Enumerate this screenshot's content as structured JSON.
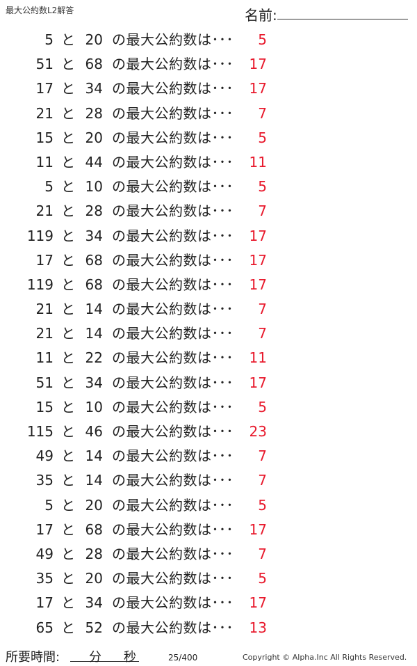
{
  "header": {
    "title": "最大公約数L2解答",
    "name_label": "名前:"
  },
  "question_suffix": "の最大公約数は･･･",
  "connector": "と",
  "answer_color": "#e8192c",
  "rows": [
    {
      "a": "5",
      "b": "20",
      "ans": "5"
    },
    {
      "a": "51",
      "b": "68",
      "ans": "17"
    },
    {
      "a": "17",
      "b": "34",
      "ans": "17"
    },
    {
      "a": "21",
      "b": "28",
      "ans": "7"
    },
    {
      "a": "15",
      "b": "20",
      "ans": "5"
    },
    {
      "a": "11",
      "b": "44",
      "ans": "11"
    },
    {
      "a": "5",
      "b": "10",
      "ans": "5"
    },
    {
      "a": "21",
      "b": "28",
      "ans": "7"
    },
    {
      "a": "119",
      "b": "34",
      "ans": "17"
    },
    {
      "a": "17",
      "b": "68",
      "ans": "17"
    },
    {
      "a": "119",
      "b": "68",
      "ans": "17"
    },
    {
      "a": "21",
      "b": "14",
      "ans": "7"
    },
    {
      "a": "21",
      "b": "14",
      "ans": "7"
    },
    {
      "a": "11",
      "b": "22",
      "ans": "11"
    },
    {
      "a": "51",
      "b": "34",
      "ans": "17"
    },
    {
      "a": "15",
      "b": "10",
      "ans": "5"
    },
    {
      "a": "115",
      "b": "46",
      "ans": "23"
    },
    {
      "a": "49",
      "b": "14",
      "ans": "7"
    },
    {
      "a": "35",
      "b": "14",
      "ans": "7"
    },
    {
      "a": "5",
      "b": "20",
      "ans": "5"
    },
    {
      "a": "17",
      "b": "68",
      "ans": "17"
    },
    {
      "a": "49",
      "b": "28",
      "ans": "7"
    },
    {
      "a": "35",
      "b": "20",
      "ans": "5"
    },
    {
      "a": "17",
      "b": "34",
      "ans": "17"
    },
    {
      "a": "65",
      "b": "52",
      "ans": "13"
    }
  ],
  "footer": {
    "time_label": "所要時間:",
    "minutes": "分",
    "seconds": "秒",
    "page": "25/400",
    "copyright": "Copyright ©  Alpha.Inc All Rights Reserved."
  }
}
